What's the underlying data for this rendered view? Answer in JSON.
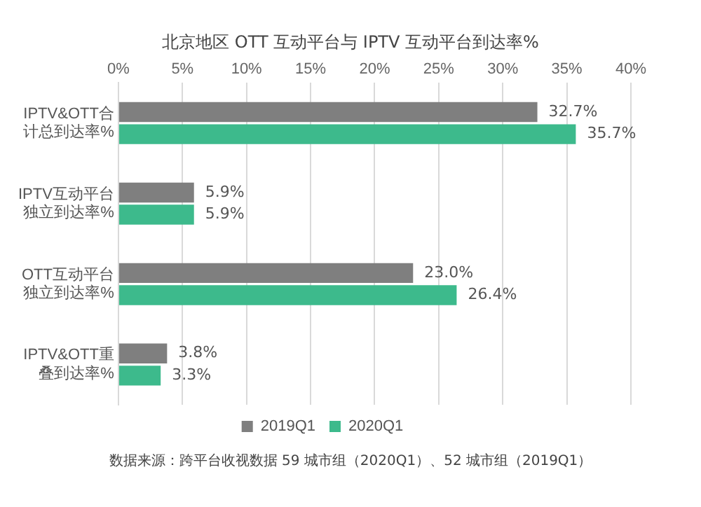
{
  "chart_data": {
    "type": "bar",
    "orientation": "horizontal",
    "title": "北京地区 OTT 互动平台与 IPTV 互动平台到达率%",
    "categories": [
      "IPTV&OTT合计总到达率%",
      "IPTV互动平台独立到达率%",
      "OTT互动平台独立到达率%",
      "IPTV&OTT重叠到达率%"
    ],
    "series": [
      {
        "name": "2019Q1",
        "color": "#7f7f7f",
        "values": [
          32.7,
          5.9,
          23.0,
          3.8
        ]
      },
      {
        "name": "2020Q1",
        "color": "#3dba8c",
        "values": [
          35.7,
          5.9,
          26.4,
          3.3
        ]
      }
    ],
    "xlim": [
      0,
      40
    ],
    "xticks": [
      {
        "value": 0,
        "label": "0%"
      },
      {
        "value": 5,
        "label": "5%"
      },
      {
        "value": 10,
        "label": "10%"
      },
      {
        "value": 15,
        "label": "15%"
      },
      {
        "value": 20,
        "label": "20%"
      },
      {
        "value": 25,
        "label": "25%"
      },
      {
        "value": 30,
        "label": "30%"
      },
      {
        "value": 35,
        "label": "35%"
      },
      {
        "value": 40,
        "label": "40%"
      }
    ],
    "grid": "x",
    "legend": "bottom",
    "value_labels": [
      [
        "32.7%",
        "5.9%",
        "23.0%",
        "3.8%"
      ],
      [
        "35.7%",
        "5.9%",
        "26.4%",
        "3.3%"
      ]
    ],
    "annotations": [
      "数据来源：跨平台收视数据 59 城市组（2020Q1）、52 城市组（2019Q1）"
    ]
  }
}
